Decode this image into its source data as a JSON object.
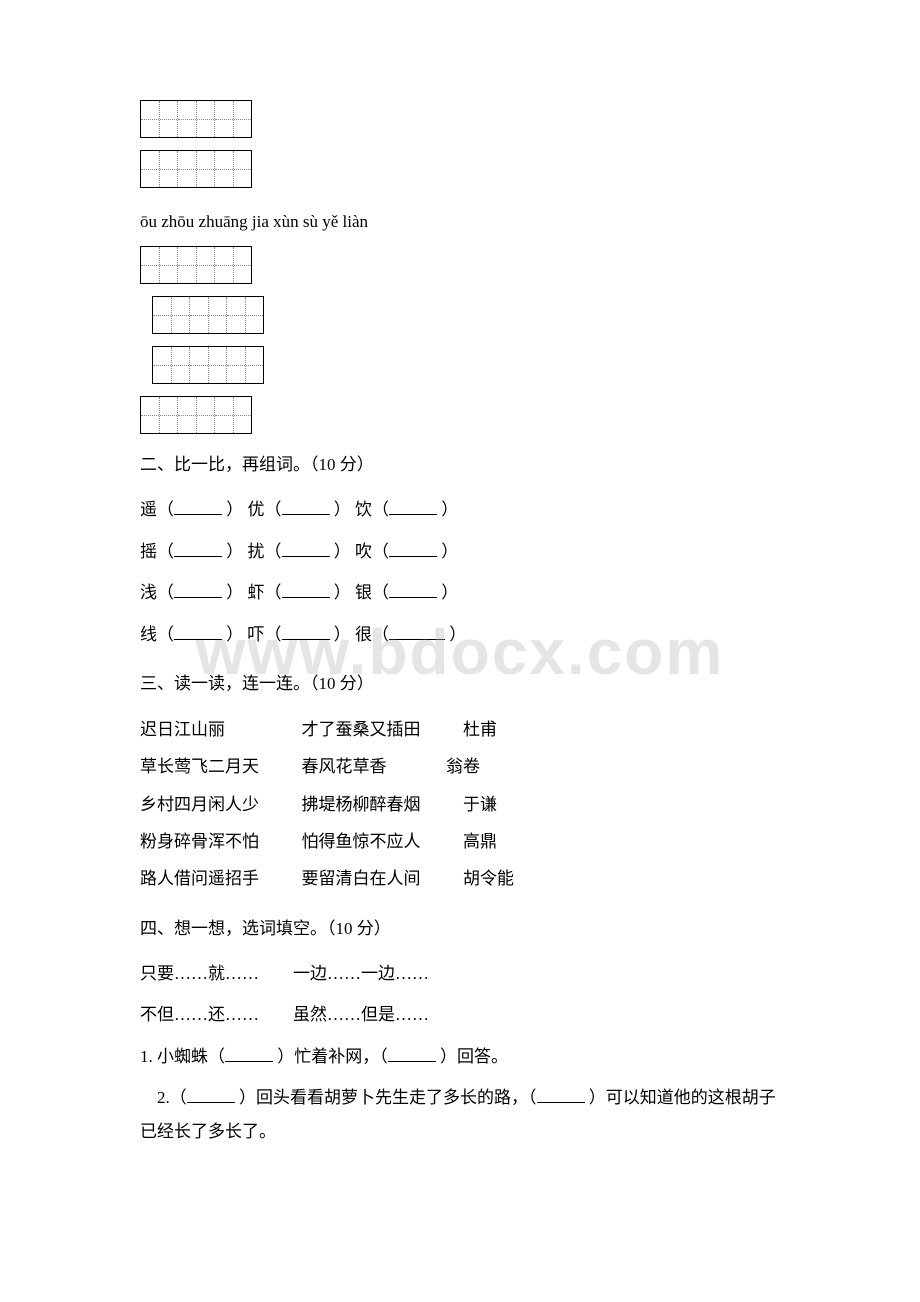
{
  "watermark": "www.bdocx.com",
  "pinyin_line": "ōu zhōu  zhuāng jia   xùn sù   yě liàn",
  "section2": {
    "title": "二、比一比，再组词。（10 分）",
    "rows": [
      [
        "遥（",
        "）   优（",
        "）   饮（",
        "）"
      ],
      [
        "摇（",
        "）   扰（",
        "）   吹（",
        "）"
      ],
      [
        "浅（",
        "）   虾（",
        "）   银（",
        "）"
      ],
      [
        "线（",
        "）   吓（",
        "）   很（",
        "）"
      ]
    ]
  },
  "section3": {
    "title": "三、读一读，连一连。（10 分）",
    "rows": [
      [
        "迟日江山丽",
        "才了蚕桑又插田",
        "杜甫"
      ],
      [
        "草长莺飞二月天",
        "春风花草香",
        "翁卷"
      ],
      [
        "乡村四月闲人少",
        "拂堤杨柳醉春烟",
        "于谦"
      ],
      [
        "粉身碎骨浑不怕",
        "怕得鱼惊不应人",
        "高鼎"
      ],
      [
        "路人借问遥招手",
        "要留清白在人间",
        "胡令能"
      ]
    ]
  },
  "section4": {
    "title": "四、想一想，选词填空。（10 分）",
    "options_row1_a": "只要……就……",
    "options_row1_b": "一边……一边……",
    "options_row2_a": "不但……还……",
    "options_row2_b": "虽然……但是……",
    "q1_a": "1. 小蜘蛛（",
    "q1_b": "）忙着补网，（",
    "q1_c": "）回答。",
    "q2_a": "2.（",
    "q2_b": "）回头看看胡萝卜先生走了多长的路，（",
    "q2_c": "）可以知道他的这根胡子已经长了多长了。"
  }
}
